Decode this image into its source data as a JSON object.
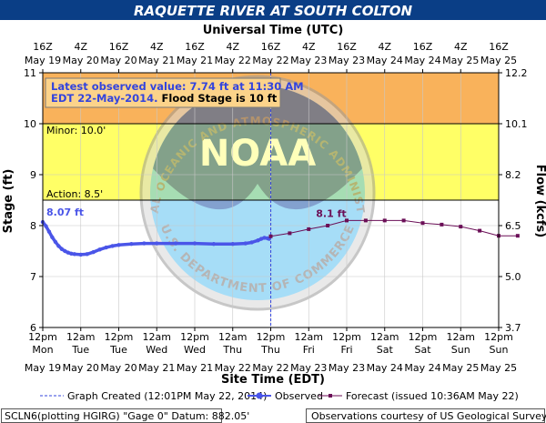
{
  "chart_data": {
    "type": "line",
    "title": "RAQUETTE RIVER AT SOUTH COLTON",
    "top_axis_title": "Universal Time (UTC)",
    "top_ticks": [
      {
        "hour": "16Z",
        "date": "May 19",
        "at": "2014-05-19T12:00"
      },
      {
        "hour": "4Z",
        "date": "May 20",
        "at": "2014-05-20T00:00"
      },
      {
        "hour": "16Z",
        "date": "May 20",
        "at": "2014-05-20T12:00"
      },
      {
        "hour": "4Z",
        "date": "May 21",
        "at": "2014-05-21T00:00"
      },
      {
        "hour": "16Z",
        "date": "May 21",
        "at": "2014-05-21T12:00"
      },
      {
        "hour": "4Z",
        "date": "May 22",
        "at": "2014-05-22T00:00"
      },
      {
        "hour": "16Z",
        "date": "May 22",
        "at": "2014-05-22T12:00"
      },
      {
        "hour": "4Z",
        "date": "May 23",
        "at": "2014-05-23T00:00"
      },
      {
        "hour": "16Z",
        "date": "May 23",
        "at": "2014-05-23T12:00"
      },
      {
        "hour": "4Z",
        "date": "May 24",
        "at": "2014-05-24T00:00"
      },
      {
        "hour": "16Z",
        "date": "May 24",
        "at": "2014-05-24T12:00"
      },
      {
        "hour": "4Z",
        "date": "May 25",
        "at": "2014-05-25T00:00"
      },
      {
        "hour": "16Z",
        "date": "May 25",
        "at": "2014-05-25T12:00"
      }
    ],
    "bottom_ticks": [
      {
        "time": "12pm",
        "day": "Mon",
        "date": "May 19",
        "at": "2014-05-19T12:00"
      },
      {
        "time": "12am",
        "day": "Tue",
        "date": "May 20",
        "at": "2014-05-20T00:00"
      },
      {
        "time": "12pm",
        "day": "Tue",
        "date": "May 20",
        "at": "2014-05-20T12:00"
      },
      {
        "time": "12am",
        "day": "Wed",
        "date": "May 21",
        "at": "2014-05-21T00:00"
      },
      {
        "time": "12pm",
        "day": "Wed",
        "date": "May 21",
        "at": "2014-05-21T12:00"
      },
      {
        "time": "12am",
        "day": "Thu",
        "date": "May 22",
        "at": "2014-05-22T00:00"
      },
      {
        "time": "12pm",
        "day": "Thu",
        "date": "May 22",
        "at": "2014-05-22T12:00"
      },
      {
        "time": "12am",
        "day": "Fri",
        "date": "May 23",
        "at": "2014-05-23T00:00"
      },
      {
        "time": "12pm",
        "day": "Fri",
        "date": "May 23",
        "at": "2014-05-23T12:00"
      },
      {
        "time": "12am",
        "day": "Sat",
        "date": "May 24",
        "at": "2014-05-24T00:00"
      },
      {
        "time": "12pm",
        "day": "Sat",
        "date": "May 24",
        "at": "2014-05-24T12:00"
      },
      {
        "time": "12am",
        "day": "Sun",
        "date": "May 25",
        "at": "2014-05-25T00:00"
      },
      {
        "time": "12pm",
        "day": "Sun",
        "date": "May 25",
        "at": "2014-05-25T12:00"
      }
    ],
    "xlabel": "Site Time (EDT)",
    "xlim": [
      "2014-05-19T12:00",
      "2014-05-25T12:00"
    ],
    "ylabel": "Stage (ft)",
    "ylim": [
      6,
      11
    ],
    "y_ticks": [
      "6",
      "7",
      "8",
      "9",
      "10",
      "11"
    ],
    "y2label": "Flow (kcfs)",
    "y2_ticks": [
      {
        "label": "3.7",
        "stage": 6
      },
      {
        "label": "5.0",
        "stage": 7
      },
      {
        "label": "6.5",
        "stage": 8
      },
      {
        "label": "8.2",
        "stage": 9
      },
      {
        "label": "10.1",
        "stage": 10
      },
      {
        "label": "12.2",
        "stage": 11
      }
    ],
    "grid": true,
    "bands": [
      {
        "label": "",
        "from": 10,
        "to": 11,
        "color": "#f9b25b"
      },
      {
        "label": "Minor: 10.0'",
        "from": 8.5,
        "to": 10,
        "color": "#ffff66"
      },
      {
        "label": "Action: 8.5'",
        "from": 6,
        "to": 8.5,
        "color": "#ffffff"
      }
    ],
    "graph_created": "2014-05-22T12:01",
    "series": [
      {
        "name": "Observed",
        "color": "#4a55e8",
        "peak_label": "8.07 ft",
        "points": [
          [
            "2014-05-19T12:00",
            8.07
          ],
          [
            "2014-05-19T13:00",
            7.99
          ],
          [
            "2014-05-19T14:00",
            7.88
          ],
          [
            "2014-05-19T15:00",
            7.77
          ],
          [
            "2014-05-19T16:00",
            7.68
          ],
          [
            "2014-05-19T17:00",
            7.6
          ],
          [
            "2014-05-19T18:00",
            7.54
          ],
          [
            "2014-05-19T19:00",
            7.5
          ],
          [
            "2014-05-19T20:00",
            7.47
          ],
          [
            "2014-05-19T21:00",
            7.45
          ],
          [
            "2014-05-19T22:00",
            7.44
          ],
          [
            "2014-05-20T00:00",
            7.43
          ],
          [
            "2014-05-20T02:00",
            7.44
          ],
          [
            "2014-05-20T04:00",
            7.48
          ],
          [
            "2014-05-20T06:00",
            7.53
          ],
          [
            "2014-05-20T08:00",
            7.57
          ],
          [
            "2014-05-20T10:00",
            7.6
          ],
          [
            "2014-05-20T12:00",
            7.62
          ],
          [
            "2014-05-20T16:00",
            7.64
          ],
          [
            "2014-05-20T20:00",
            7.65
          ],
          [
            "2014-05-21T00:00",
            7.65
          ],
          [
            "2014-05-21T06:00",
            7.65
          ],
          [
            "2014-05-21T12:00",
            7.65
          ],
          [
            "2014-05-21T18:00",
            7.64
          ],
          [
            "2014-05-22T00:00",
            7.64
          ],
          [
            "2014-05-22T04:00",
            7.65
          ],
          [
            "2014-05-22T06:00",
            7.67
          ],
          [
            "2014-05-22T08:00",
            7.71
          ],
          [
            "2014-05-22T09:00",
            7.74
          ],
          [
            "2014-05-22T10:00",
            7.76
          ],
          [
            "2014-05-22T11:00",
            7.75
          ],
          [
            "2014-05-22T11:30",
            7.74
          ]
        ]
      },
      {
        "name": "Forecast (issued 10:36AM May 22)",
        "color": "#6b0f57",
        "peak_label": "8.1 ft",
        "points": [
          [
            "2014-05-22T12:00",
            7.79
          ],
          [
            "2014-05-22T18:00",
            7.85
          ],
          [
            "2014-05-23T00:00",
            7.93
          ],
          [
            "2014-05-23T06:00",
            8.0
          ],
          [
            "2014-05-23T12:00",
            8.1
          ],
          [
            "2014-05-23T18:00",
            8.1
          ],
          [
            "2014-05-24T00:00",
            8.1
          ],
          [
            "2014-05-24T06:00",
            8.1
          ],
          [
            "2014-05-24T12:00",
            8.05
          ],
          [
            "2014-05-24T18:00",
            8.02
          ],
          [
            "2014-05-25T00:00",
            7.98
          ],
          [
            "2014-05-25T06:00",
            7.9
          ],
          [
            "2014-05-25T12:00",
            7.8
          ],
          [
            "2014-05-25T18:00",
            7.8
          ]
        ]
      }
    ],
    "annotation": {
      "line1": "Latest observed value: 7.74 ft at 11:30 AM",
      "line2": "EDT 22-May-2014.",
      "line2b": "Flood Stage is 10 ft"
    },
    "legend": {
      "placement": "bottom",
      "graph_created": "Graph Created (12:01PM May 22, 2014)",
      "observed": "Observed",
      "forecast": "Forecast (issued 10:36AM May 22)"
    },
    "footer": {
      "left": "SCLN6(plotting HGIRG) \"Gage 0\" Datum: 882.05'",
      "right": "Observations courtesy of US Geological Survey"
    },
    "watermark": {
      "text": "NOAA",
      "ring_top": "NATIONAL OCEANIC AND ATMOSPHERIC ADMINISTRATION",
      "ring_bottom": "U.S. DEPARTMENT OF COMMERCE"
    }
  },
  "colors": {
    "title_band": "#0a3e86",
    "observed": "#4a55e8",
    "forecast": "#6b0f57",
    "flood_band": "#f9b25b",
    "minor_band": "#ffff66",
    "annotation_bg": "#fcd38a"
  }
}
